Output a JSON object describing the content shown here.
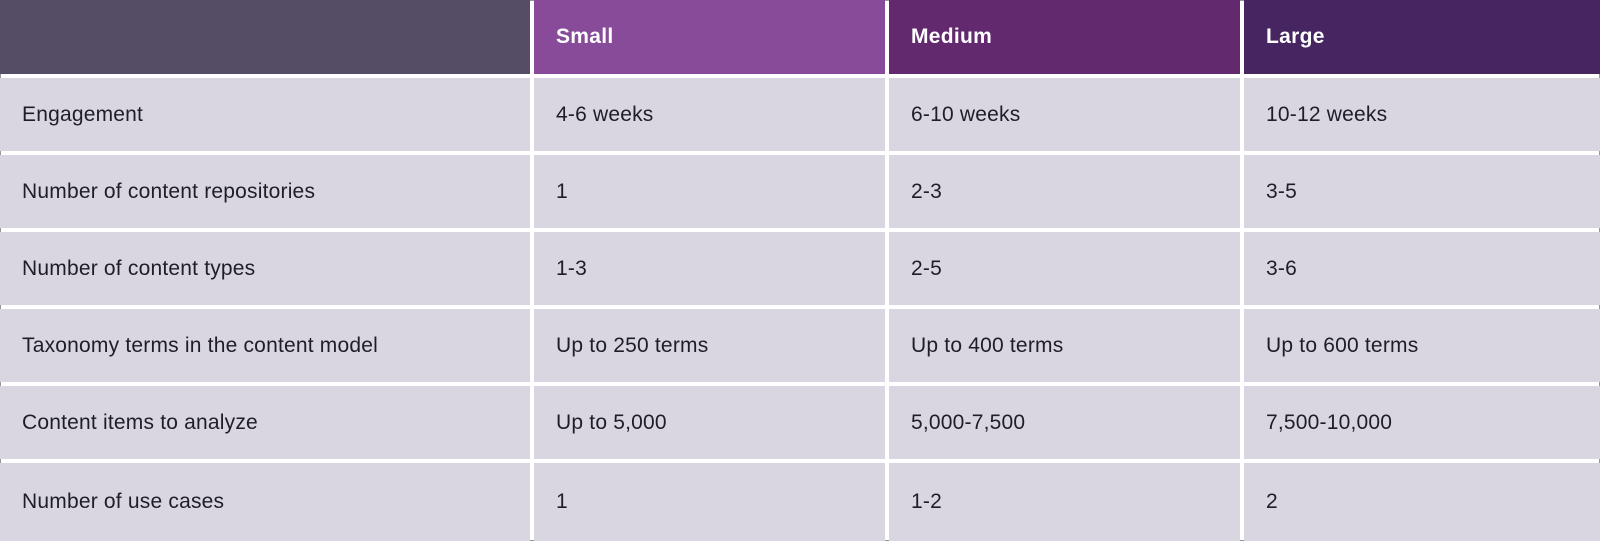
{
  "chart_data": {
    "type": "table",
    "columns": [
      "",
      "Small",
      "Medium",
      "Large"
    ],
    "rows": [
      {
        "label": "Engagement",
        "values": [
          "4-6 weeks",
          "6-10 weeks",
          "10-12 weeks"
        ]
      },
      {
        "label": "Number of content repositories",
        "values": [
          "1",
          "2-3",
          "3-5"
        ]
      },
      {
        "label": "Number of content types",
        "values": [
          "1-3",
          "2-5",
          "3-6"
        ]
      },
      {
        "label": "Taxonomy terms in the content model",
        "values": [
          "Up to 250 terms",
          "Up to 400 terms",
          "Up to 600 terms"
        ]
      },
      {
        "label": "Content items to analyze",
        "values": [
          "Up to 5,000",
          "5,000-7,500",
          "7,500-10,000"
        ]
      },
      {
        "label": "Number of use cases",
        "values": [
          "1",
          "1-2",
          "2"
        ]
      }
    ]
  },
  "colors": {
    "corner_header_bg": "#554c66",
    "small_header_bg": "#874b99",
    "medium_header_bg": "#63296e",
    "large_header_bg": "#472560",
    "body_cell_bg": "#d9d6e1",
    "gap_bg": "#ffffff",
    "header_text": "#ffffff",
    "body_text": "#1e1e24"
  }
}
